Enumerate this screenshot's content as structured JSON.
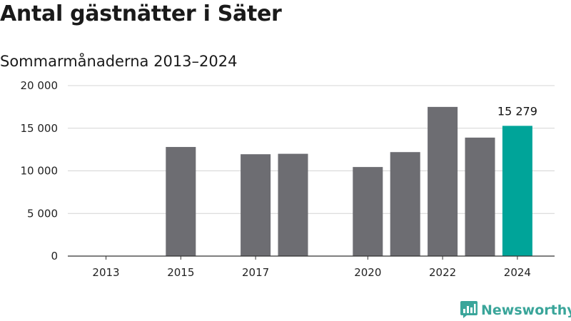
{
  "header": {
    "title": "Antal gästnätter i Säter",
    "subtitle": "Sommarmånaderna 2013–2024"
  },
  "brand": {
    "name": "Newsworthy",
    "icon": "newsworthy-logo-icon",
    "color": "#3aa59a"
  },
  "colors": {
    "bar": "#6d6d72",
    "highlight": "#00a499",
    "grid": "#d4d4d4",
    "axis": "#333333"
  },
  "chart_data": {
    "type": "bar",
    "categories": [
      "2013",
      "2014",
      "2015",
      "2016",
      "2017",
      "2018",
      "2019",
      "2020",
      "2021",
      "2022",
      "2023",
      "2024"
    ],
    "values": [
      null,
      null,
      12800,
      null,
      11950,
      12000,
      null,
      10450,
      12200,
      17500,
      13900,
      15279
    ],
    "highlight_index": 11,
    "value_labels": [
      {
        "index": 11,
        "text": "15 279"
      }
    ],
    "x_tick_labels": [
      "2013",
      "",
      "2015",
      "",
      "2017",
      "",
      "",
      "2020",
      "",
      "2022",
      "",
      "2024"
    ],
    "y_ticks": [
      0,
      5000,
      10000,
      15000,
      20000
    ],
    "y_tick_labels": [
      "0",
      "5 000",
      "10 000",
      "15 000",
      "20 000"
    ],
    "ylim": [
      0,
      20000
    ],
    "grid": true,
    "legend": "none"
  }
}
